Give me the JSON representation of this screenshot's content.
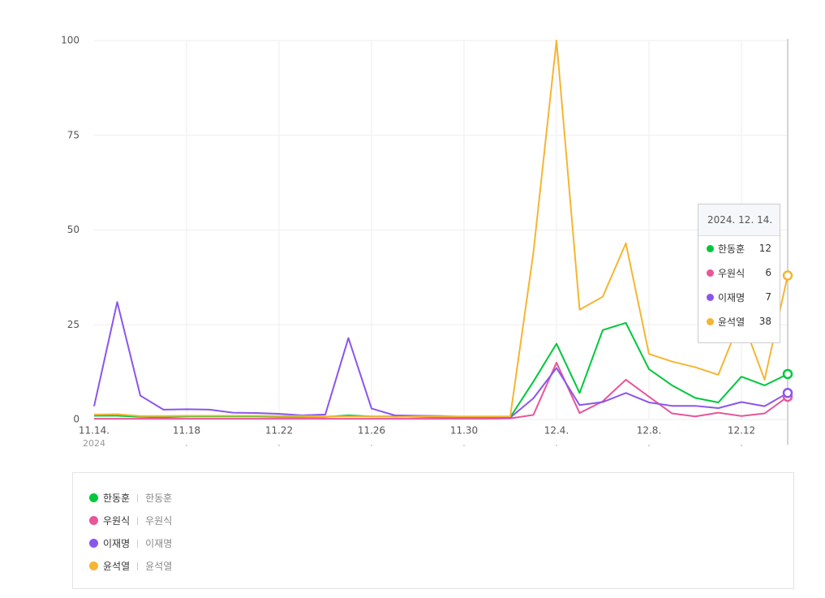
{
  "chart_data": {
    "type": "line",
    "categories": [
      "11.14.",
      null,
      null,
      null,
      "11.18",
      null,
      null,
      null,
      "11.22",
      null,
      null,
      null,
      "11.26",
      null,
      null,
      null,
      "11.30",
      null,
      null,
      null,
      "12.4.",
      null,
      null,
      null,
      "12.8.",
      null,
      null,
      null,
      "12.12",
      null,
      null
    ],
    "x_sublabel": "2024",
    "ylim": [
      0,
      100
    ],
    "yticks": [
      0,
      25,
      50,
      75,
      100
    ],
    "grid": true,
    "series": [
      {
        "name": "한동훈",
        "keywords": "한동훈",
        "color": "#00c73c",
        "values": [
          1,
          1,
          0.7,
          0.6,
          0.8,
          0.8,
          0.8,
          0.8,
          0.7,
          0.7,
          0.7,
          1.1,
          0.8,
          0.8,
          0.7,
          0.6,
          0.6,
          0.6,
          0.6,
          10,
          20,
          7,
          23.6,
          25.5,
          13.3,
          9,
          5.7,
          4.5,
          11.3,
          9,
          12
        ]
      },
      {
        "name": "우원식",
        "keywords": "우원식",
        "color": "#e8559a",
        "values": [
          0.2,
          0.2,
          0.2,
          0.2,
          0.2,
          0.2,
          0.2,
          0.2,
          0.2,
          0.2,
          0.2,
          0.2,
          0.2,
          0.2,
          0.2,
          0.2,
          0.2,
          0.2,
          0.3,
          1.2,
          15,
          1.7,
          4.8,
          10.5,
          6,
          1.6,
          0.8,
          1.8,
          0.9,
          1.6,
          6
        ]
      },
      {
        "name": "이재명",
        "keywords": "이재명",
        "color": "#8b55ed",
        "values": [
          3.5,
          31,
          6.3,
          2.6,
          2.7,
          2.6,
          1.8,
          1.7,
          1.5,
          1.1,
          1.3,
          21.5,
          2.9,
          1.1,
          1,
          0.9,
          0.7,
          0.7,
          0.5,
          5.6,
          13.6,
          3.8,
          4.6,
          7,
          4.5,
          3.6,
          3.6,
          3,
          4.6,
          3.5,
          7
        ]
      },
      {
        "name": "윤석열",
        "keywords": "윤석열",
        "color": "#f5b532",
        "values": [
          1.3,
          1.4,
          0.9,
          0.9,
          1,
          1,
          1,
          1,
          0.9,
          0.9,
          0.8,
          0.8,
          0.8,
          0.7,
          0.8,
          0.8,
          0.8,
          0.8,
          0.8,
          44,
          100,
          29,
          32.4,
          46.5,
          17.3,
          15.3,
          13.8,
          11.8,
          27,
          10.5,
          38
        ]
      }
    ],
    "tooltip": {
      "title": "2024. 12. 14.",
      "index": 30
    }
  }
}
